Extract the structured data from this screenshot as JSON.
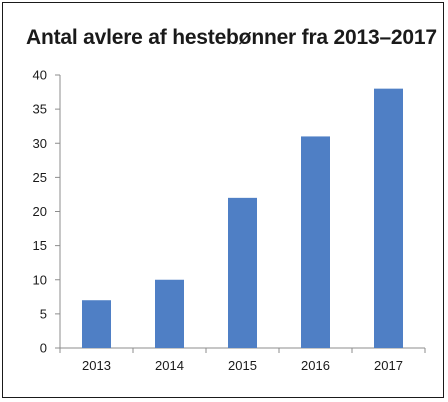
{
  "chart_data": {
    "type": "bar",
    "title": "Antal avlere af hestebønner fra 2013–2017",
    "xlabel": "",
    "ylabel": "",
    "categories": [
      "2013",
      "2014",
      "2015",
      "2016",
      "2017"
    ],
    "values": [
      7,
      10,
      22,
      31,
      38
    ],
    "ylim": [
      0,
      40
    ],
    "yticks": [
      0,
      5,
      10,
      15,
      20,
      25,
      30,
      35,
      40
    ],
    "grid": false,
    "legend": "none",
    "colors": {
      "bar": "#4f7fc5",
      "axis": "#8c8c8c",
      "text": "#1a1a1a"
    }
  }
}
